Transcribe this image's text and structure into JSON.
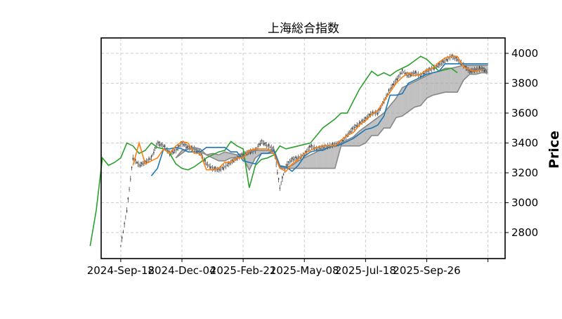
{
  "chart_data": {
    "type": "line",
    "title": "上海総合指数",
    "xlabel": "",
    "ylabel": "Price",
    "ylim": [
      2626,
      4103
    ],
    "xlim_index": [
      -16,
      314
    ],
    "grid": true,
    "y_axis_side": "right",
    "yticks": [
      2800,
      3000,
      3200,
      3400,
      3600,
      3800,
      4000
    ],
    "xticks": [
      {
        "index": 0,
        "label": "2024-Sep-18"
      },
      {
        "index": 50,
        "label": "2024-Dec-04"
      },
      {
        "index": 100,
        "label": "2025-Feb-21"
      },
      {
        "index": 150,
        "label": "2025-May-08"
      },
      {
        "index": 200,
        "label": "2025-Jul-18"
      },
      {
        "index": 250,
        "label": "2025-Sep-26"
      },
      {
        "index": 300,
        "label": ""
      }
    ],
    "step": 5,
    "chikou_shift_steps": 5,
    "colors": {
      "candles": "#333333",
      "tenkan": "#ff7f0e",
      "kijun": "#1f77b4",
      "chikou": "#2ca02c",
      "cloud": "#a0a0a0"
    },
    "close": [
      2710,
      2950,
      3300,
      3250,
      3270,
      3300,
      3400,
      3380,
      3330,
      3350,
      3400,
      3370,
      3360,
      3330,
      3260,
      3230,
      3220,
      3240,
      3270,
      3300,
      3320,
      3340,
      3350,
      3410,
      3380,
      3360,
      3100,
      3250,
      3290,
      3300,
      3320,
      3380,
      3360,
      3370,
      3380,
      3390,
      3400,
      3450,
      3500,
      3530,
      3560,
      3600,
      3600,
      3680,
      3760,
      3820,
      3880,
      3850,
      3870,
      3850,
      3880,
      3900,
      3920,
      3950,
      3980,
      3960,
      3920,
      3880,
      3890,
      3900,
      3870
    ],
    "tenkan": [
      null,
      null,
      3250,
      3400,
      3260,
      3280,
      3300,
      3360,
      3330,
      3380,
      3410,
      3400,
      3330,
      3330,
      3220,
      3220,
      3230,
      3270,
      3270,
      3300,
      3300,
      3350,
      3360,
      3360,
      3360,
      3330,
      3230,
      3210,
      3260,
      3290,
      3330,
      3350,
      3370,
      3380,
      3380,
      3380,
      3420,
      3450,
      3470,
      3520,
      3550,
      3590,
      3620,
      3680,
      3740,
      3800,
      3840,
      3870,
      3850,
      3860,
      3890,
      3900,
      3940,
      3970,
      3980,
      3980,
      3910,
      3890,
      3880,
      3890,
      null
    ],
    "kijun": [
      null,
      null,
      null,
      null,
      null,
      3180,
      3230,
      3360,
      3360,
      3370,
      3360,
      3340,
      3340,
      3340,
      3370,
      3370,
      3370,
      3370,
      3340,
      3340,
      3280,
      3270,
      3260,
      3330,
      3330,
      3350,
      3240,
      3240,
      3210,
      3250,
      3310,
      3340,
      3350,
      3350,
      3370,
      3380,
      3390,
      3410,
      3430,
      3460,
      3490,
      3500,
      3520,
      3580,
      3720,
      3720,
      3730,
      3800,
      3820,
      3840,
      3860,
      3870,
      3880,
      3930,
      3930,
      3930,
      3930,
      3930,
      3930,
      3930,
      3930
    ],
    "span_a": [
      null,
      null,
      null,
      null,
      null,
      null,
      null,
      null,
      null,
      3300,
      3350,
      3360,
      3370,
      3360,
      3320,
      3330,
      3320,
      3340,
      3330,
      3320,
      3330,
      3340,
      3350,
      3350,
      3350,
      3360,
      3250,
      3240,
      3250,
      3280,
      3300,
      3320,
      3340,
      3360,
      3370,
      3380,
      3400,
      3420,
      3440,
      3480,
      3510,
      3540,
      3570,
      3600,
      3650,
      3700,
      3770,
      3790,
      3810,
      3830,
      3850,
      3870,
      3880,
      3900,
      3900,
      3910,
      3920,
      3920,
      3920,
      3920,
      3920
    ],
    "span_b": [
      null,
      null,
      null,
      null,
      null,
      null,
      null,
      null,
      null,
      3300,
      3330,
      3360,
      3360,
      3340,
      3320,
      3300,
      3280,
      3280,
      3300,
      3300,
      3300,
      3220,
      3300,
      3330,
      3330,
      3330,
      3230,
      3230,
      3230,
      3230,
      3230,
      3230,
      3230,
      3230,
      3230,
      3230,
      3380,
      3380,
      3380,
      3380,
      3400,
      3450,
      3450,
      3500,
      3500,
      3570,
      3580,
      3610,
      3640,
      3650,
      3700,
      3720,
      3730,
      3740,
      3740,
      3740,
      3820,
      3860,
      3860,
      3870,
      3870
    ]
  }
}
